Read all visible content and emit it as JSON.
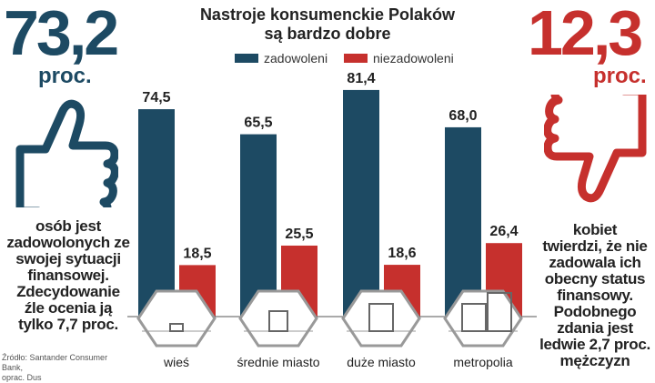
{
  "left": {
    "value": "73,2",
    "unit": "proc.",
    "text": [
      "osób jest",
      "zadowolonych ze",
      "swojej sytuacji",
      "finansowej.",
      "Zdecydowanie",
      "źle ocenia ją",
      "tylko 7,7 proc."
    ]
  },
  "right": {
    "value": "12,3",
    "unit": "proc.",
    "text": [
      "kobiet",
      "twierdzi, że nie",
      "zadowala ich",
      "obecny status",
      "finansowy.",
      "Podobnego",
      "zdania jest",
      "ledwie 2,7 proc.",
      "mężczyzn"
    ]
  },
  "source": [
    "Źródło: Santander Consumer Bank,",
    "oprac. Dus"
  ],
  "colors": {
    "blue": "#1d4a63",
    "red": "#c6302d"
  },
  "chart_data": {
    "type": "bar",
    "title": "Nastroje konsumenckie Polaków są bardzo dobre",
    "title_lines": [
      "Nastroje konsumenckie Polaków",
      "są bardzo dobre"
    ],
    "categories": [
      "wieś",
      "średnie miasto",
      "duże miasto",
      "metropolia"
    ],
    "series": [
      {
        "name": "zadowoleni",
        "values": [
          74.5,
          65.5,
          81.4,
          68.0
        ],
        "labels": [
          "74,5",
          "65,5",
          "81,4",
          "68,0"
        ]
      },
      {
        "name": "niezadowoleni",
        "values": [
          18.5,
          25.5,
          18.6,
          26.4
        ],
        "labels": [
          "18,5",
          "25,5",
          "18,6",
          "26,4"
        ]
      }
    ],
    "ylim": [
      0,
      90
    ],
    "legend": "top-center"
  }
}
